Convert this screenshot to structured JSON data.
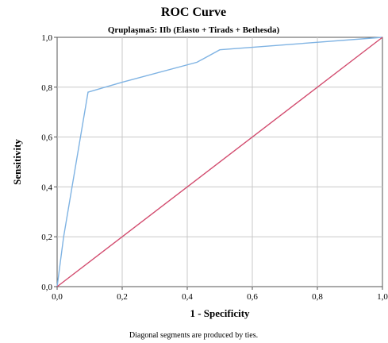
{
  "chart_data": {
    "type": "line",
    "title": "ROC Curve",
    "subtitle": "Qruplaşma5: IIb (Elasto + Tirads + Bethesda)",
    "xlabel": "1 - Specificity",
    "ylabel": "Sensitivity",
    "footnote": "Diagonal segments are produced by ties.",
    "xlim": [
      0,
      1
    ],
    "ylim": [
      0,
      1
    ],
    "x_ticks": [
      "0,0",
      "0,2",
      "0,4",
      "0,6",
      "0,8",
      "1,0"
    ],
    "y_ticks": [
      "0,0",
      "0,2",
      "0,4",
      "0,6",
      "0,8",
      "1,0"
    ],
    "grid": true,
    "series": [
      {
        "color": "#7fb3e3",
        "points": [
          [
            0,
            0
          ],
          [
            0.02,
            0.2
          ],
          [
            0.095,
            0.78
          ],
          [
            0.2,
            0.82
          ],
          [
            0.43,
            0.9
          ],
          [
            0.5,
            0.95
          ],
          [
            1.0,
            1.0
          ]
        ]
      },
      {
        "color": "#d24b6e",
        "points": [
          [
            0,
            0
          ],
          [
            1,
            1
          ]
        ]
      }
    ]
  }
}
